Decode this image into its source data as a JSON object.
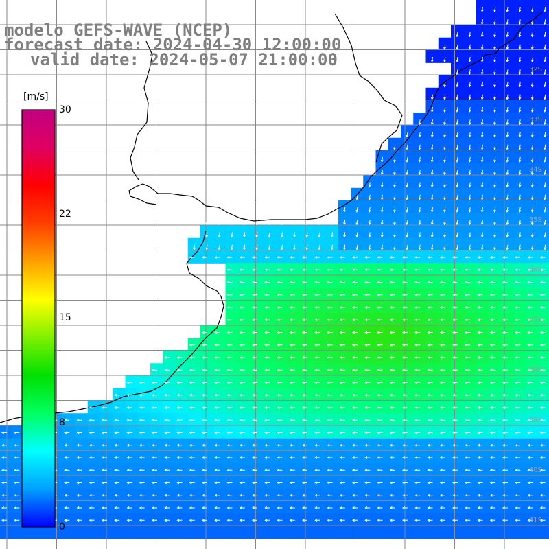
{
  "title": {
    "model": "modelo GEFS-WAVE (NCEP)",
    "forecast": "forecast date: 2024-04-30 12:00:00",
    "valid": "valid date: 2024-05-07 21:00:00"
  },
  "colorbar": {
    "unit": "[m/s]",
    "ticks": [
      "30",
      "22",
      "15",
      "8",
      "0"
    ],
    "range": [
      0,
      30
    ],
    "colors": [
      "#0000ff",
      "#00a0ff",
      "#00ffff",
      "#00ff60",
      "#00e000",
      "#80f000",
      "#ffff00",
      "#ffa000",
      "#ff4000",
      "#ff0000",
      "#e00060",
      "#c00080"
    ]
  },
  "latitude_labels": [
    "32S",
    "33S",
    "34S",
    "35S",
    "36S",
    "37S",
    "38S",
    "39S",
    "40S",
    "41S"
  ],
  "colors": {
    "land": "#ffffff",
    "coast": "#000000",
    "grid": "#8a8a8a",
    "arrow": "#ffffff",
    "title": "#7f7f7f"
  }
}
